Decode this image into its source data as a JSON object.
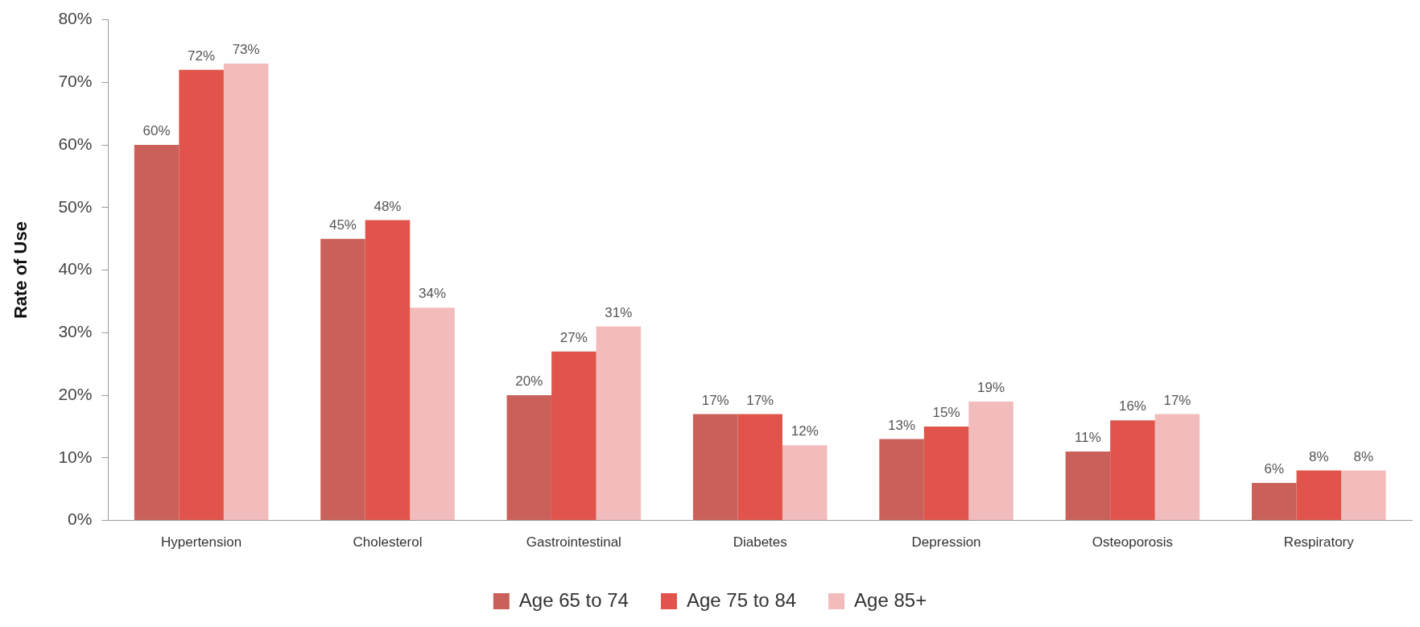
{
  "chart_data": {
    "type": "bar",
    "ylabel": "Rate of Use",
    "categories": [
      "Hypertension",
      "Cholesterol",
      "Gastrointestinal",
      "Diabetes",
      "Depression",
      "Osteoporosis",
      "Respiratory"
    ],
    "series": [
      {
        "name": "Age 65 to 74",
        "color": "#c9605a",
        "values": [
          60,
          45,
          20,
          17,
          13,
          11,
          6
        ],
        "value_labels": [
          "60%",
          "45%",
          "20%",
          "17%",
          "13%",
          "11%",
          "6%"
        ]
      },
      {
        "name": "Age 75 to 84",
        "color": "#e0544b",
        "values": [
          72,
          48,
          27,
          17,
          15,
          16,
          8
        ],
        "value_labels": [
          "72%",
          "48%",
          "27%",
          "17%",
          "15%",
          "16%",
          "8%"
        ]
      },
      {
        "name": "Age 85+",
        "color": "#f2bcbc",
        "values": [
          73,
          34,
          31,
          12,
          19,
          17,
          8
        ],
        "value_labels": [
          "73%",
          "34%",
          "31%",
          "12%",
          "19%",
          "17%",
          "8%"
        ]
      }
    ],
    "ylim": [
      0,
      80
    ],
    "yticks": [
      {
        "value": 0,
        "label": "0%"
      },
      {
        "value": 10,
        "label": "10%"
      },
      {
        "value": 20,
        "label": "20%"
      },
      {
        "value": 30,
        "label": "30%"
      },
      {
        "value": 40,
        "label": "40%"
      },
      {
        "value": 50,
        "label": "50%"
      },
      {
        "value": 60,
        "label": "60%"
      },
      {
        "value": 70,
        "label": "70%"
      },
      {
        "value": 80,
        "label": "80%"
      }
    ],
    "grid": false,
    "legend": "bottom"
  }
}
